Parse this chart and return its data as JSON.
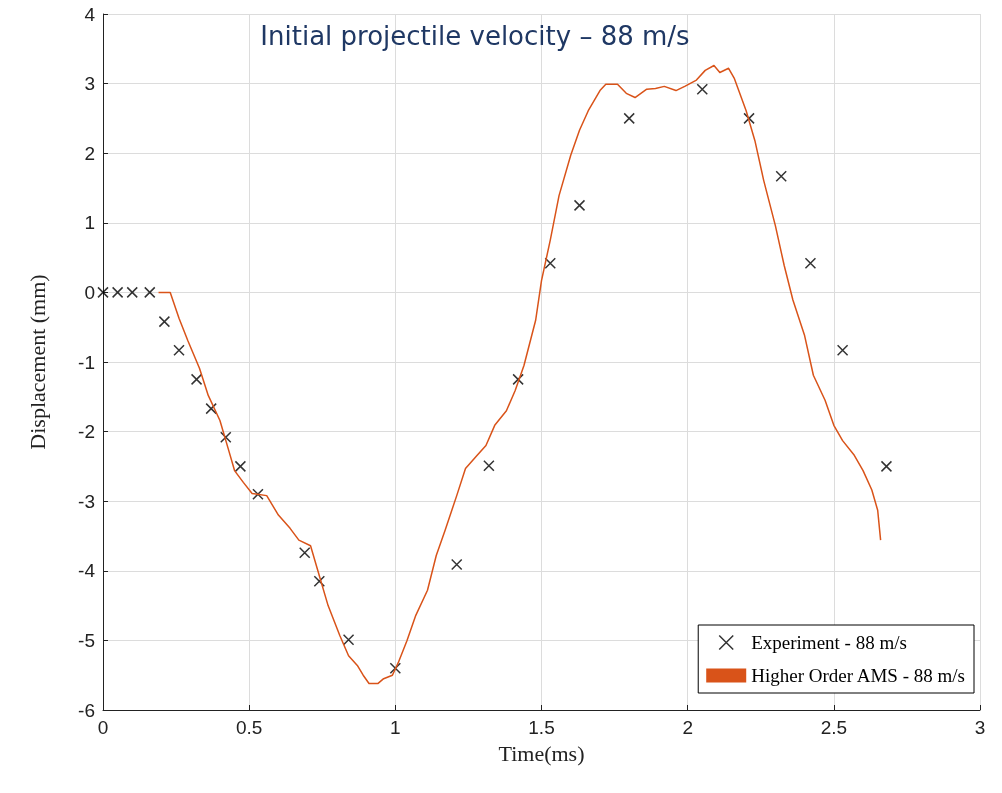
{
  "chart_data": {
    "type": "line",
    "title": "Initial projectile velocity – 88 m/s",
    "xlabel": "Time(ms)",
    "ylabel": "Displacement (mm)",
    "xlim": [
      0,
      3
    ],
    "xticks": [
      0,
      0.5,
      1,
      1.5,
      2,
      2.5,
      3
    ],
    "ylim": [
      -6,
      4
    ],
    "yticks": [
      -6,
      -5,
      -4,
      -3,
      -2,
      -1,
      0,
      1,
      2,
      3,
      4
    ],
    "grid": true,
    "legend": "bottom right",
    "series": [
      {
        "name": "Experiment - 88 m/s",
        "type": "scatter",
        "marker": "cross",
        "color": "#000000",
        "x": [
          0,
          0.05,
          0.1,
          0.16,
          0.21,
          0.26,
          0.32,
          0.37,
          0.42,
          0.47,
          0.53,
          0.69,
          0.74,
          0.84,
          1.0,
          1.21,
          1.32,
          1.42,
          1.53,
          1.63,
          1.8,
          2.05,
          2.21,
          2.32,
          2.42,
          2.53,
          2.68
        ],
        "values": [
          0,
          0,
          0,
          0,
          -0.42,
          -0.83,
          -1.25,
          -1.67,
          -2.08,
          -2.5,
          -2.9,
          -3.74,
          -4.15,
          -4.99,
          -5.4,
          -3.91,
          -2.49,
          -1.25,
          0.42,
          1.25,
          2.5,
          2.92,
          2.5,
          1.67,
          0.42,
          -0.83,
          -2.5
        ]
      },
      {
        "name": "Higher Order AMS - 88 m/s",
        "type": "line",
        "marker": "none",
        "line_style": "solid",
        "color": "#d95319",
        "x": [
          0.19,
          0.23,
          0.26,
          0.29,
          0.33,
          0.36,
          0.4,
          0.43,
          0.45,
          0.48,
          0.51,
          0.56,
          0.6,
          0.64,
          0.67,
          0.71,
          0.74,
          0.77,
          0.81,
          0.84,
          0.87,
          0.89,
          0.91,
          0.94,
          0.96,
          0.99,
          1.01,
          1.04,
          1.07,
          1.11,
          1.14,
          1.17,
          1.21,
          1.24,
          1.28,
          1.31,
          1.34,
          1.38,
          1.41,
          1.44,
          1.48,
          1.5,
          1.53,
          1.56,
          1.6,
          1.63,
          1.66,
          1.7,
          1.72,
          1.76,
          1.79,
          1.82,
          1.86,
          1.89,
          1.92,
          1.96,
          1.99,
          2.03,
          2.06,
          2.09,
          2.11,
          2.14,
          2.16,
          2.2,
          2.23,
          2.26,
          2.3,
          2.33,
          2.36,
          2.4,
          2.43,
          2.47,
          2.5,
          2.53,
          2.57,
          2.6,
          2.63,
          2.65,
          2.66
        ],
        "values": [
          0,
          0,
          -0.37,
          -0.69,
          -1.09,
          -1.48,
          -1.84,
          -2.27,
          -2.56,
          -2.73,
          -2.89,
          -2.92,
          -3.2,
          -3.39,
          -3.56,
          -3.64,
          -4.07,
          -4.5,
          -4.93,
          -5.22,
          -5.36,
          -5.5,
          -5.62,
          -5.62,
          -5.55,
          -5.5,
          -5.32,
          -5.0,
          -4.64,
          -4.28,
          -3.78,
          -3.42,
          -2.92,
          -2.53,
          -2.34,
          -2.2,
          -1.91,
          -1.7,
          -1.41,
          -1.05,
          -0.4,
          0.17,
          0.75,
          1.39,
          1.97,
          2.33,
          2.61,
          2.9,
          2.99,
          2.99,
          2.86,
          2.8,
          2.92,
          2.93,
          2.96,
          2.9,
          2.96,
          3.05,
          3.19,
          3.26,
          3.16,
          3.22,
          3.07,
          2.61,
          2.18,
          1.61,
          0.96,
          0.39,
          -0.11,
          -0.62,
          -1.19,
          -1.55,
          -1.91,
          -2.13,
          -2.34,
          -2.56,
          -2.84,
          -3.13,
          -3.56
        ]
      }
    ]
  }
}
